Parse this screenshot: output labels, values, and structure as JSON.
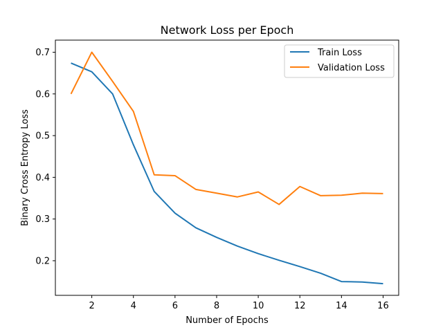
{
  "chart_data": {
    "type": "line",
    "title": "Network Loss per Epoch",
    "xlabel": "Number of Epochs",
    "ylabel": "Binary Cross Entropy Loss",
    "x": [
      1,
      2,
      3,
      4,
      5,
      6,
      7,
      8,
      9,
      10,
      11,
      12,
      13,
      14,
      15,
      16
    ],
    "xlim": [
      0.25,
      16.75
    ],
    "ylim": [
      0.117,
      0.729
    ],
    "xticks": [
      2,
      4,
      6,
      8,
      10,
      12,
      14,
      16
    ],
    "yticks": [
      0.2,
      0.3,
      0.4,
      0.5,
      0.6,
      0.7
    ],
    "xtick_labels": [
      "2",
      "4",
      "6",
      "8",
      "10",
      "12",
      "14",
      "16"
    ],
    "ytick_labels": [
      "0.2",
      "0.3",
      "0.4",
      "0.5",
      "0.6",
      "0.7"
    ],
    "grid": false,
    "legend_position": "top-right",
    "series": [
      {
        "name": "Train Loss",
        "color": "#1f77b4",
        "values": [
          0.674,
          0.653,
          0.6,
          0.478,
          0.366,
          0.314,
          0.279,
          0.256,
          0.235,
          0.217,
          0.201,
          0.186,
          0.17,
          0.15,
          0.149,
          0.145
        ]
      },
      {
        "name": "Validation Loss",
        "color": "#ff7f0e",
        "values": [
          0.6,
          0.7,
          0.63,
          0.558,
          0.406,
          0.404,
          0.371,
          0.362,
          0.353,
          0.365,
          0.335,
          0.378,
          0.356,
          0.357,
          0.362,
          0.361
        ]
      }
    ]
  }
}
